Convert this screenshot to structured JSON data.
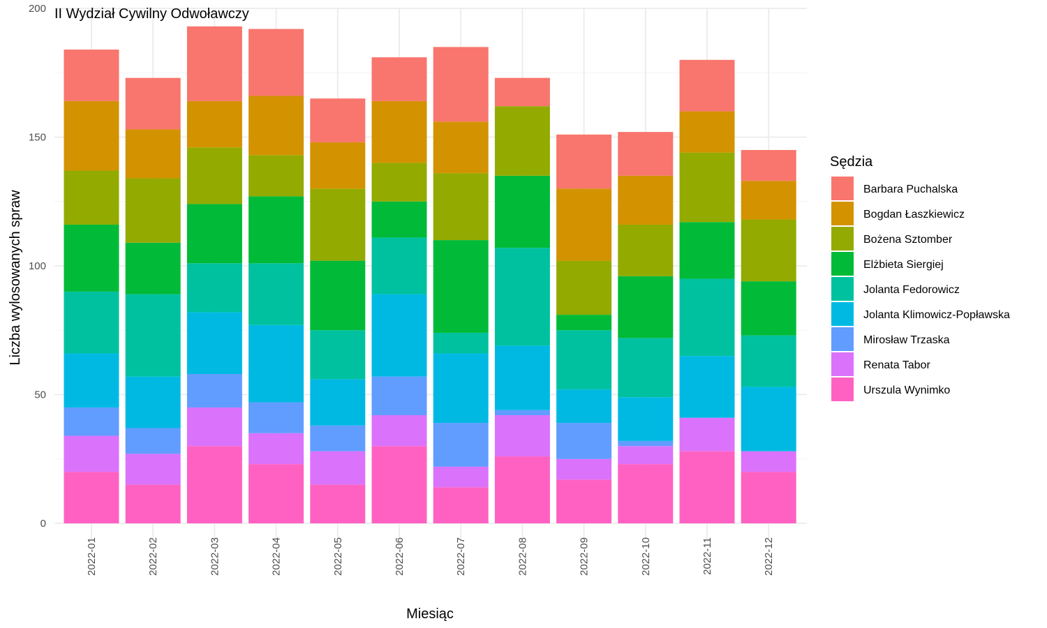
{
  "chart_data": {
    "type": "bar",
    "stacked": true,
    "title": "II Wydział Cywilny Odwoławczy",
    "xlabel": "Miesiąc",
    "ylabel": "Liczba wylosowanych spraw",
    "ylim": [
      0,
      200
    ],
    "yticks": [
      "0",
      "50",
      "100",
      "150",
      "200"
    ],
    "grid": true,
    "legend_position": "right",
    "legend_title": "Sędzia",
    "categories": [
      "2022-01",
      "2022-02",
      "2022-03",
      "2022-04",
      "2022-05",
      "2022-06",
      "2022-07",
      "2022-08",
      "2022-09",
      "2022-10",
      "2022-11",
      "2022-12"
    ],
    "series": [
      {
        "name": "Urszula Wynimko",
        "color": "#FF61C3",
        "values": [
          20,
          15,
          30,
          23,
          15,
          30,
          14,
          26,
          17,
          23,
          28,
          20
        ]
      },
      {
        "name": "Renata Tabor",
        "color": "#DB72FB",
        "values": [
          14,
          12,
          15,
          12,
          13,
          12,
          8,
          16,
          8,
          7,
          13,
          8
        ]
      },
      {
        "name": "Mirosław Trzaska",
        "color": "#619CFF",
        "values": [
          11,
          10,
          13,
          12,
          10,
          15,
          17,
          2,
          14,
          2,
          0,
          0
        ]
      },
      {
        "name": "Jolanta Klimowicz-Popławska",
        "color": "#00B9E3",
        "values": [
          21,
          20,
          24,
          30,
          18,
          32,
          27,
          25,
          13,
          17,
          24,
          25
        ]
      },
      {
        "name": "Jolanta Fedorowicz",
        "color": "#00C19F",
        "values": [
          24,
          32,
          19,
          24,
          19,
          22,
          8,
          38,
          23,
          23,
          30,
          20
        ]
      },
      {
        "name": "Elżbieta Siergiej",
        "color": "#00BA38",
        "values": [
          26,
          20,
          23,
          26,
          27,
          14,
          36,
          28,
          6,
          24,
          22,
          21
        ]
      },
      {
        "name": "Bożena Sztomber",
        "color": "#93AA00",
        "values": [
          21,
          25,
          22,
          16,
          28,
          15,
          26,
          27,
          21,
          20,
          27,
          24
        ]
      },
      {
        "name": "Bogdan Łaszkiewicz",
        "color": "#D39200",
        "values": [
          27,
          19,
          18,
          23,
          18,
          24,
          20,
          0,
          28,
          19,
          16,
          15
        ]
      },
      {
        "name": "Barbara Puchalska",
        "color": "#F8766D",
        "values": [
          20,
          20,
          29,
          26,
          17,
          17,
          29,
          11,
          21,
          17,
          20,
          12
        ]
      }
    ],
    "legend_order": [
      "Barbara Puchalska",
      "Bogdan Łaszkiewicz",
      "Bożena Sztomber",
      "Elżbieta Siergiej",
      "Jolanta Fedorowicz",
      "Jolanta Klimowicz-Popławska",
      "Mirosław Trzaska",
      "Renata Tabor",
      "Urszula Wynimko"
    ]
  }
}
